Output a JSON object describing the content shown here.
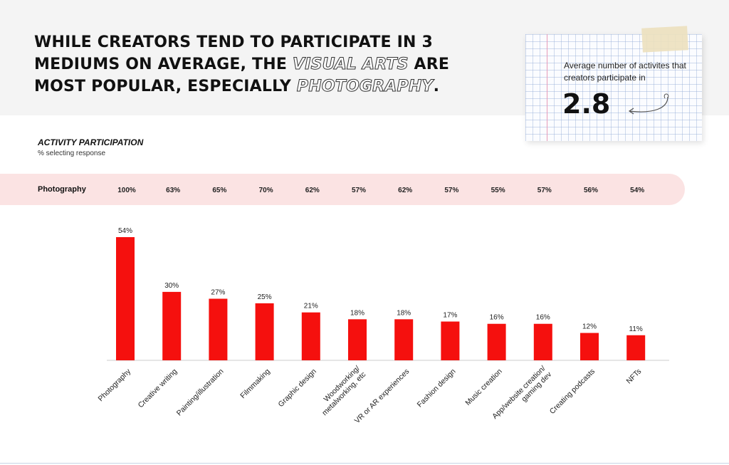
{
  "headline": {
    "line1": "WHILE CREATORS TEND TO PARTICIPATE IN 3",
    "line2_before": "MEDIUMS ON AVERAGE, THE ",
    "line2_outline": "VISUAL ARTS",
    "line2_after": " ARE",
    "line3_before": "MOST POPULAR, ESPECIALLY ",
    "line3_outline": "PHOTOGRAPHY",
    "line3_after": "."
  },
  "note": {
    "label": "Average number of activites that creators participate in",
    "value": "2.8"
  },
  "overlap_row": {
    "label": "Photography",
    "values": [
      "100%",
      "63%",
      "65%",
      "70%",
      "62%",
      "57%",
      "62%",
      "57%",
      "55%",
      "57%",
      "56%",
      "54%"
    ]
  },
  "colors": {
    "bar": "#f5100e",
    "overlap_row_bg": "#fbe3e3",
    "note_margin": "#e89ab8"
  },
  "chart_data": {
    "type": "bar",
    "title": "ACTIVITY PARTICIPATION",
    "subtitle": "% selecting response",
    "categories": [
      "Photography",
      "Creative writing",
      "Painting/illustration",
      "Filmmaking",
      "Graphic design",
      "Woodworking/ metalworking, etc",
      "VR or AR experiences",
      "Fashion design",
      "Music creation",
      "App/website creation/ gaming dev",
      "Creating podcasts",
      "NFTs"
    ],
    "values": [
      54,
      30,
      27,
      25,
      21,
      18,
      18,
      17,
      16,
      16,
      12,
      11
    ],
    "value_labels": [
      "54%",
      "30%",
      "27%",
      "25%",
      "21%",
      "18%",
      "18%",
      "17%",
      "16%",
      "16%",
      "12%",
      "11%"
    ],
    "ylim": [
      0,
      60
    ],
    "grid": false,
    "legend": "none"
  }
}
